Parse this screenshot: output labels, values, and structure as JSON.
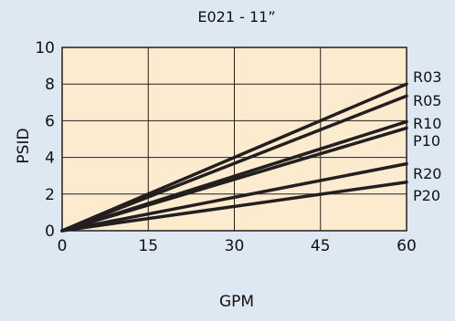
{
  "chart_data": {
    "type": "line",
    "title": "E021 - 11”",
    "xlabel": "GPM",
    "ylabel": "PSID",
    "xlim": [
      0,
      60
    ],
    "ylim": [
      0,
      10
    ],
    "xticks": [
      "0",
      "15",
      "30",
      "45",
      "60"
    ],
    "yticks": [
      "0",
      "2",
      "4",
      "6",
      "8",
      "10"
    ],
    "grid": true,
    "legend": "series labels at right end of lines",
    "colors": {
      "background": "#dde8f3",
      "plot_area": "#fdebd0",
      "line": "#231f20",
      "grid": "#231f20"
    },
    "series": [
      {
        "name": "R03",
        "x": [
          0,
          60
        ],
        "y": [
          0,
          8.0
        ]
      },
      {
        "name": "R05",
        "x": [
          0,
          60
        ],
        "y": [
          0,
          7.35
        ]
      },
      {
        "name": "R10",
        "x": [
          0,
          60
        ],
        "y": [
          0,
          5.95
        ]
      },
      {
        "name": "P10",
        "x": [
          0,
          60
        ],
        "y": [
          0,
          5.6
        ]
      },
      {
        "name": "R20",
        "x": [
          0,
          60
        ],
        "y": [
          0,
          3.65
        ]
      },
      {
        "name": "P20",
        "x": [
          0,
          60
        ],
        "y": [
          0,
          2.65
        ]
      }
    ]
  }
}
